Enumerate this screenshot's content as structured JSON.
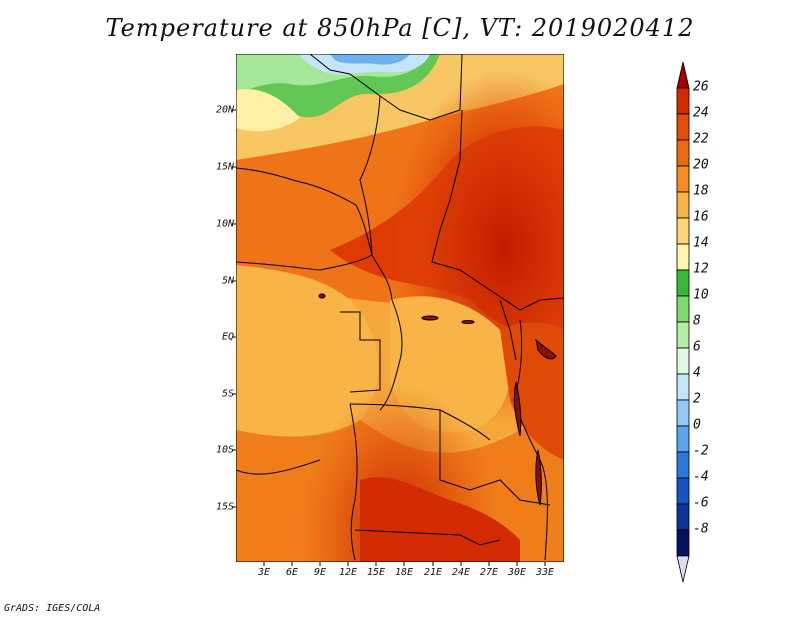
{
  "title": "Temperature at 850hPa [C], VT: 2019020412",
  "map": {
    "lat_labels": [
      "20N",
      "15N",
      "10N",
      "5N",
      "EQ",
      "5S",
      "10S",
      "15S"
    ],
    "lon_labels": [
      "3E",
      "6E",
      "9E",
      "12E",
      "15E",
      "18E",
      "21E",
      "24E",
      "27E",
      "30E",
      "33E"
    ]
  },
  "colorbar": {
    "levels": [
      "26",
      "24",
      "22",
      "20",
      "18",
      "16",
      "14",
      "12",
      "10",
      "8",
      "6",
      "4",
      "2",
      "0",
      "-2",
      "-4",
      "-6",
      "-8"
    ],
    "colors": [
      "#a00000",
      "#d42a00",
      "#e84a0a",
      "#ee6a10",
      "#f58e1f",
      "#f8b447",
      "#fbd77a",
      "#fff4b0",
      "#37b837",
      "#80da6f",
      "#b4f0a3",
      "#e0f8e0",
      "#c4e4f8",
      "#94c8f4",
      "#5ca2ec",
      "#2e78dc",
      "#1654c4",
      "#0c3496",
      "#081060",
      "#dcdcf4"
    ]
  },
  "footer": "GrADS: IGES/COLA"
}
